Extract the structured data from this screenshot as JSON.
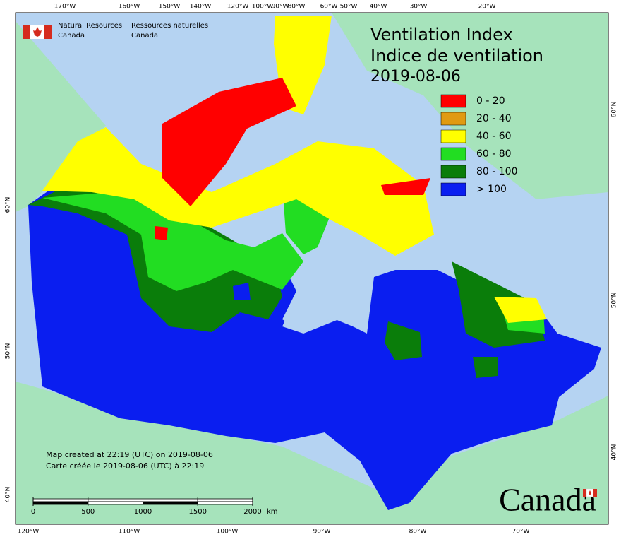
{
  "header": {
    "agency_en": [
      "Natural Resources",
      "Canada"
    ],
    "agency_fr": [
      "Ressources naturelles",
      "Canada"
    ]
  },
  "title": {
    "en": "Ventilation Index",
    "fr": "Indice de ventilation",
    "date": "2019-08-06"
  },
  "legend": [
    {
      "label": "0 - 20",
      "color": "#ff0000"
    },
    {
      "label": "20 - 40",
      "color": "#e09a12"
    },
    {
      "label": "40 - 60",
      "color": "#ffff00"
    },
    {
      "label": "60 - 80",
      "color": "#22dd22"
    },
    {
      "label": "80 - 100",
      "color": "#0a7d0a"
    },
    {
      "label": "> 100",
      "color": "#0a1ef0"
    }
  ],
  "longitude_top": [
    "170°W",
    "160°W",
    "150°W",
    "140°W",
    "120°W",
    "100°W",
    "90°W",
    "80°W",
    "60°W",
    "50°W",
    "40°W",
    "30°W",
    "20°W"
  ],
  "longitude_bottom": [
    "120°W",
    "110°W",
    "100°W",
    "90°W",
    "80°W",
    "70°W"
  ],
  "latitude_left": [
    "60°N",
    "50°N",
    "40°N"
  ],
  "latitude_right": [
    "60°N",
    "50°N",
    "40°N"
  ],
  "notes": [
    "Map created at 22:19 (UTC) on 2019-08-06",
    "Carte créée le 2019-08-06 (UTC) à 22:19"
  ],
  "scale": {
    "ticks": [
      0,
      500,
      1000,
      1500,
      2000
    ],
    "unit": "km"
  },
  "wordmark": "Canada"
}
